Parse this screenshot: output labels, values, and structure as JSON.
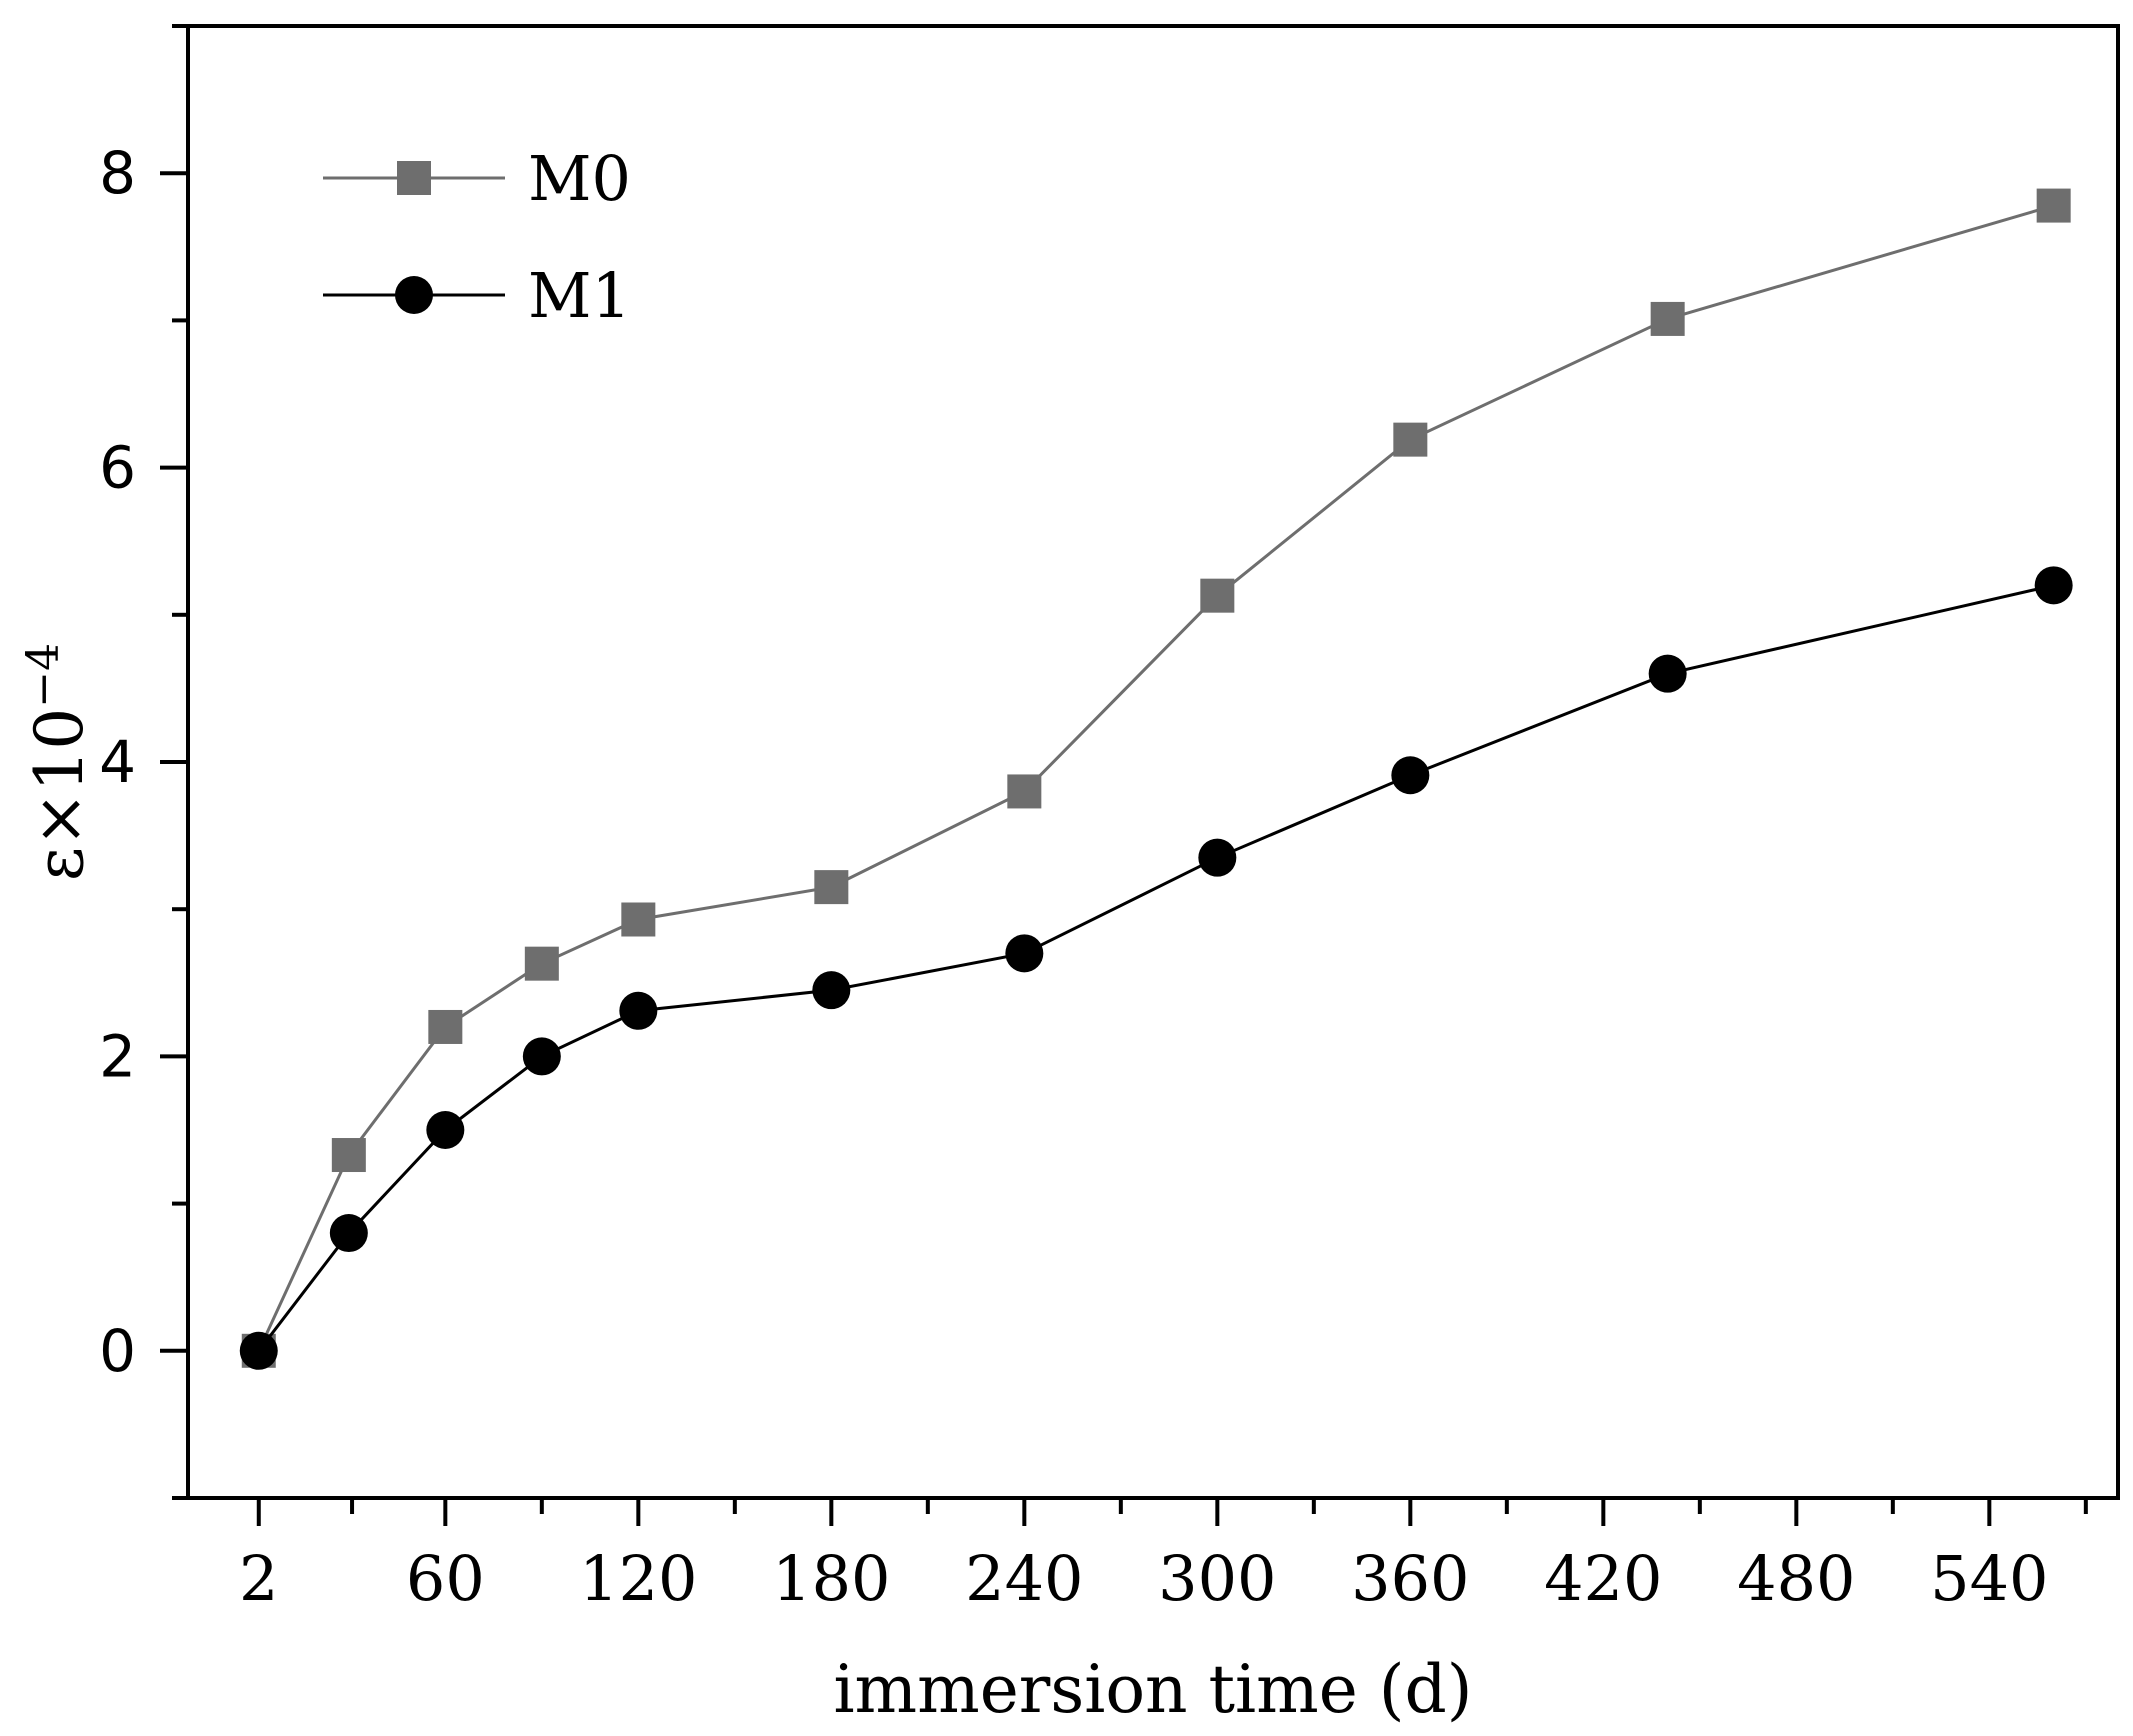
{
  "chart_data": {
    "type": "line",
    "title": "",
    "xlabel": "immersion time (d)",
    "ylabel": "ε×10",
    "ylabel_exponent": "−4",
    "x_ticks": [
      2,
      60,
      120,
      180,
      240,
      300,
      360,
      420,
      480,
      540
    ],
    "x_tick_labels": [
      "2",
      "60",
      "120",
      "180",
      "240",
      "300",
      "360",
      "420",
      "480",
      "540"
    ],
    "y_ticks": [
      0,
      2,
      4,
      6,
      8
    ],
    "y_tick_labels": [
      "0",
      "2",
      "4",
      "6",
      "8"
    ],
    "xlim": [
      -20,
      580
    ],
    "ylim": [
      -1,
      9
    ],
    "grid": false,
    "legend_position": "top-left",
    "x": [
      2,
      30,
      60,
      90,
      120,
      180,
      240,
      300,
      360,
      440,
      560
    ],
    "series": [
      {
        "name": "M0",
        "marker": "square",
        "color": "#6e6e6e",
        "values": [
          0,
          1.33,
          2.2,
          2.63,
          2.93,
          3.15,
          3.8,
          5.13,
          6.19,
          7.01,
          7.78
        ]
      },
      {
        "name": "M1",
        "marker": "circle",
        "color": "#000000",
        "values": [
          0,
          0.8,
          1.5,
          2.0,
          2.31,
          2.45,
          2.7,
          3.35,
          3.91,
          4.6,
          5.2
        ]
      }
    ]
  }
}
